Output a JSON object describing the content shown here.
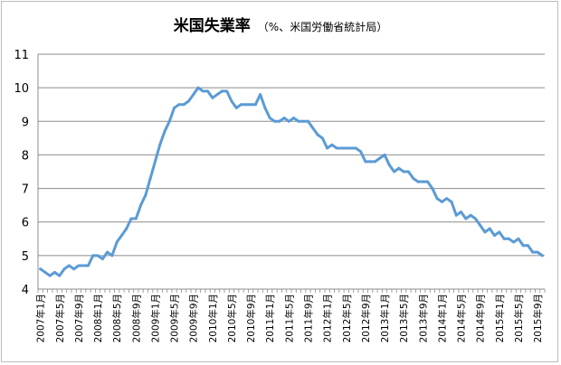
{
  "chart_data": {
    "type": "line",
    "title": "米国失業率",
    "subtitle": "（%、米国労働省統計局）",
    "ylim": [
      4,
      11
    ],
    "yticks": [
      4,
      5,
      6,
      7,
      8,
      9,
      10,
      11
    ],
    "grid": true,
    "legend": "none",
    "line_color": "#5b9bd5",
    "x_start": "2007-01",
    "xtick_labels": [
      "2007年1月",
      "2007年5月",
      "2007年9月",
      "2008年1月",
      "2008年5月",
      "2008年9月",
      "2009年1月",
      "2009年5月",
      "2009年9月",
      "2010年1月",
      "2010年5月",
      "2010年9月",
      "2011年1月",
      "2011年5月",
      "2011年9月",
      "2012年1月",
      "2012年5月",
      "2012年9月",
      "2013年1月",
      "2013年5月",
      "2013年9月",
      "2014年1月",
      "2014年5月",
      "2014年9月",
      "2015年1月",
      "2015年5月",
      "2015年9月"
    ],
    "series": [
      {
        "values": [
          4.6,
          4.5,
          4.4,
          4.5,
          4.4,
          4.6,
          4.7,
          4.6,
          4.7,
          4.7,
          4.7,
          5.0,
          5.0,
          4.9,
          5.1,
          5.0,
          5.4,
          5.6,
          5.8,
          6.1,
          6.1,
          6.5,
          6.8,
          7.3,
          7.8,
          8.3,
          8.7,
          9.0,
          9.4,
          9.5,
          9.5,
          9.6,
          9.8,
          10.0,
          9.9,
          9.9,
          9.7,
          9.8,
          9.9,
          9.9,
          9.6,
          9.4,
          9.5,
          9.5,
          9.5,
          9.5,
          9.8,
          9.4,
          9.1,
          9.0,
          9.0,
          9.1,
          9.0,
          9.1,
          9.0,
          9.0,
          9.0,
          8.8,
          8.6,
          8.5,
          8.2,
          8.3,
          8.2,
          8.2,
          8.2,
          8.2,
          8.2,
          8.1,
          7.8,
          7.8,
          7.8,
          7.9,
          8.0,
          7.7,
          7.5,
          7.6,
          7.5,
          7.5,
          7.3,
          7.2,
          7.2,
          7.2,
          7.0,
          6.7,
          6.6,
          6.7,
          6.6,
          6.2,
          6.3,
          6.1,
          6.2,
          6.1,
          5.9,
          5.7,
          5.8,
          5.6,
          5.7,
          5.5,
          5.5,
          5.4,
          5.5,
          5.3,
          5.3,
          5.1,
          5.1,
          5.0
        ]
      }
    ]
  }
}
